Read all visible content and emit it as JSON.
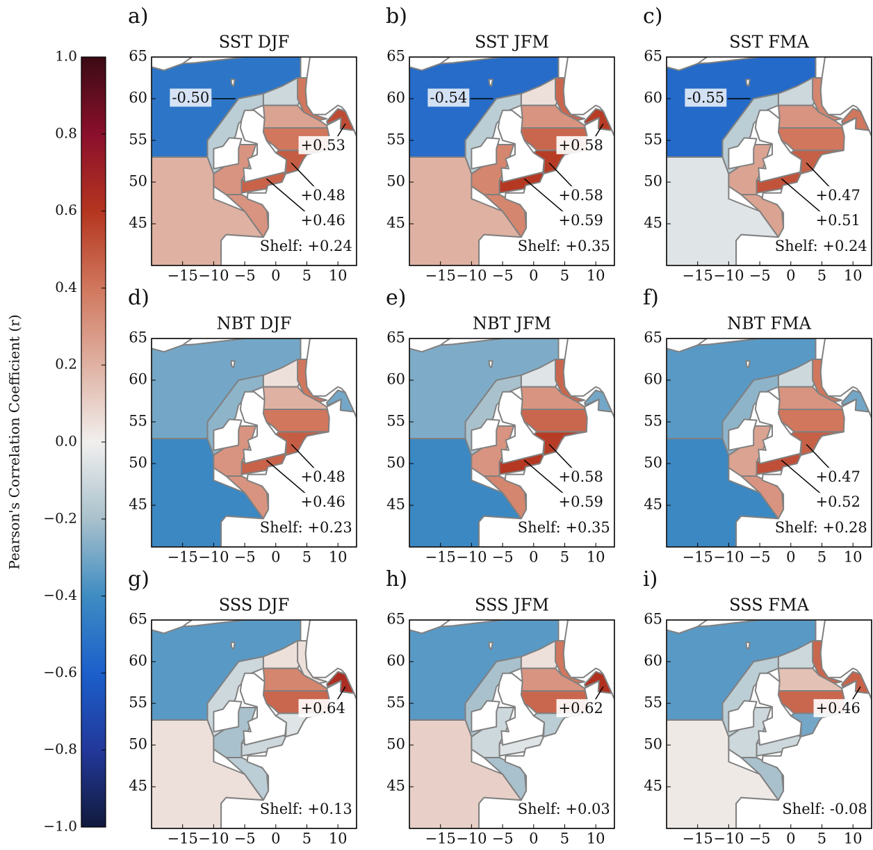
{
  "colorbar": {
    "label": "Pearson's Correlation Coefficient (r)",
    "lim": [
      -1,
      1
    ],
    "ticks": [
      {
        "value": 1,
        "label": "1.0"
      },
      {
        "value": 0.8,
        "label": "0.8"
      },
      {
        "value": 0.6,
        "label": "0.6"
      },
      {
        "value": 0.4,
        "label": "0.4"
      },
      {
        "value": 0.2,
        "label": "0.2"
      },
      {
        "value": 0,
        "label": "0.0"
      },
      {
        "value": -0.2,
        "label": "−0.2"
      },
      {
        "value": -0.4,
        "label": "−0.4"
      },
      {
        "value": -0.6,
        "label": "−0.6"
      },
      {
        "value": -0.8,
        "label": "−0.8"
      },
      {
        "value": -1,
        "label": "−1.0"
      }
    ]
  },
  "panels": [
    {
      "letter": "a)",
      "title": "SST DJF",
      "shelf": "Shelf: +0.24",
      "values": [
        -0.5,
        0.2,
        -0.15,
        -0.1,
        0.25,
        0.4,
        0.48,
        0.46,
        0.53,
        0.4,
        0.3,
        0.3
      ],
      "value_labels": [
        "-0.50",
        null,
        null,
        null,
        null,
        null,
        "+0.48",
        "+0.46",
        "+0.53",
        null,
        null,
        null
      ],
      "xlim": [
        -20,
        13
      ],
      "ylim": [
        40,
        65
      ],
      "xticks": [
        {
          "value": -15,
          "label": "−15"
        },
        {
          "value": -10,
          "label": "−10"
        },
        {
          "value": -5,
          "label": "−5"
        },
        0,
        5,
        10
      ],
      "yticks": [
        45,
        50,
        55,
        60,
        65
      ]
    },
    {
      "letter": "b)",
      "title": "SST JFM",
      "shelf": "Shelf: +0.35",
      "values": [
        -0.54,
        0.2,
        -0.15,
        0.05,
        0.3,
        0.45,
        0.58,
        0.59,
        0.58,
        0.45,
        0.35,
        0.35
      ],
      "value_labels": [
        "-0.54",
        null,
        null,
        null,
        null,
        null,
        "+0.58",
        "+0.59",
        "+0.58",
        null,
        null,
        null
      ],
      "xlim": [
        -20,
        13
      ],
      "ylim": [
        40,
        65
      ],
      "xticks": [
        {
          "value": -15,
          "label": "−15"
        },
        {
          "value": -10,
          "label": "−10"
        },
        {
          "value": -5,
          "label": "−5"
        },
        0,
        5,
        10
      ],
      "yticks": [
        45,
        50,
        55,
        60,
        65
      ]
    },
    {
      "letter": "c)",
      "title": "SST FMA",
      "shelf": "Shelf: +0.24",
      "values": [
        -0.55,
        -0.05,
        -0.15,
        -0.1,
        0.3,
        0.4,
        0.47,
        0.51,
        0.4,
        0.35,
        0.25,
        0.25
      ],
      "value_labels": [
        "-0.55",
        null,
        null,
        null,
        null,
        null,
        "+0.47",
        "+0.51",
        null,
        null,
        null,
        null
      ],
      "xlim": [
        -20,
        13
      ],
      "ylim": [
        40,
        65
      ],
      "xticks": [
        {
          "value": -15,
          "label": "−15"
        },
        {
          "value": -10,
          "label": "−10"
        },
        {
          "value": -5,
          "label": "−5"
        },
        0,
        5,
        10
      ],
      "yticks": [
        45,
        50,
        55,
        60,
        65
      ]
    },
    {
      "letter": "d)",
      "title": "NBT DJF",
      "shelf": "Shelf: +0.23",
      "values": [
        -0.3,
        -0.42,
        -0.25,
        0.05,
        0.2,
        0.4,
        0.48,
        0.46,
        -0.3,
        0.4,
        0.3,
        0.3
      ],
      "value_labels": [
        null,
        null,
        null,
        null,
        null,
        null,
        "+0.48",
        "+0.46",
        null,
        null,
        null,
        null
      ],
      "xlim": [
        -20,
        13
      ],
      "ylim": [
        40,
        65
      ],
      "xticks": [
        {
          "value": -15,
          "label": "−15"
        },
        {
          "value": -10,
          "label": "−10"
        },
        {
          "value": -5,
          "label": "−5"
        },
        0,
        5,
        10
      ],
      "yticks": [
        45,
        50,
        55,
        60,
        65
      ]
    },
    {
      "letter": "e)",
      "title": "NBT JFM",
      "shelf": "Shelf: +0.35",
      "values": [
        -0.28,
        -0.42,
        -0.2,
        -0.05,
        0.3,
        0.45,
        0.58,
        0.59,
        -0.3,
        0.45,
        0.3,
        0.35
      ],
      "value_labels": [
        null,
        null,
        null,
        null,
        null,
        null,
        "+0.58",
        "+0.59",
        null,
        null,
        null,
        null
      ],
      "xlim": [
        -20,
        13
      ],
      "ylim": [
        40,
        65
      ],
      "xticks": [
        {
          "value": -15,
          "label": "−15"
        },
        {
          "value": -10,
          "label": "−10"
        },
        {
          "value": -5,
          "label": "−5"
        },
        0,
        5,
        10
      ],
      "yticks": [
        45,
        50,
        55,
        60,
        65
      ]
    },
    {
      "letter": "f)",
      "title": "NBT FMA",
      "shelf": "Shelf: +0.28",
      "values": [
        -0.35,
        -0.42,
        -0.25,
        -0.1,
        0.3,
        0.4,
        0.47,
        0.52,
        -0.3,
        0.4,
        0.25,
        0.3
      ],
      "value_labels": [
        null,
        null,
        null,
        null,
        null,
        null,
        "+0.47",
        "+0.52",
        null,
        null,
        null,
        null
      ],
      "xlim": [
        -20,
        13
      ],
      "ylim": [
        40,
        65
      ],
      "xticks": [
        {
          "value": -15,
          "label": "−15"
        },
        {
          "value": -10,
          "label": "−10"
        },
        {
          "value": -5,
          "label": "−5"
        },
        0,
        5,
        10
      ],
      "yticks": [
        45,
        50,
        55,
        60,
        65
      ]
    },
    {
      "letter": "g)",
      "title": "SSS DJF",
      "shelf": "Shelf: +0.13",
      "values": [
        -0.35,
        0.05,
        -0.1,
        0.05,
        0.35,
        0.45,
        -0.05,
        -0.1,
        0.64,
        0.05,
        -0.2,
        -0.15
      ],
      "value_labels": [
        null,
        null,
        null,
        null,
        null,
        null,
        null,
        null,
        "+0.64",
        null,
        null,
        null
      ],
      "xlim": [
        -20,
        13
      ],
      "ylim": [
        40,
        65
      ],
      "xticks": [
        {
          "value": -15,
          "label": "−15"
        },
        {
          "value": -10,
          "label": "−10"
        },
        {
          "value": -5,
          "label": "−5"
        },
        0,
        5,
        10
      ],
      "yticks": [
        45,
        50,
        55,
        60,
        65
      ]
    },
    {
      "letter": "h)",
      "title": "SSS JFM",
      "shelf": "Shelf: +0.03",
      "values": [
        -0.35,
        0.1,
        -0.2,
        0.05,
        0.3,
        0.45,
        -0.15,
        -0.05,
        0.62,
        0.4,
        -0.1,
        -0.2
      ],
      "value_labels": [
        null,
        null,
        null,
        null,
        null,
        null,
        null,
        null,
        "+0.62",
        null,
        null,
        null
      ],
      "xlim": [
        -20,
        13
      ],
      "ylim": [
        40,
        65
      ],
      "xticks": [
        {
          "value": -15,
          "label": "−15"
        },
        {
          "value": -10,
          "label": "−10"
        },
        {
          "value": -5,
          "label": "−5"
        },
        0,
        5,
        10
      ],
      "yticks": [
        45,
        50,
        55,
        60,
        65
      ]
    },
    {
      "letter": "i)",
      "title": "SSS FMA",
      "shelf": "Shelf: -0.08",
      "values": [
        -0.35,
        0.02,
        -0.15,
        -0.1,
        0.15,
        0.45,
        -0.3,
        -0.1,
        0.46,
        0.45,
        -0.1,
        -0.2
      ],
      "value_labels": [
        null,
        null,
        null,
        null,
        null,
        null,
        null,
        null,
        "+0.46",
        null,
        null,
        null
      ],
      "xlim": [
        -20,
        13
      ],
      "ylim": [
        40,
        65
      ],
      "xticks": [
        {
          "value": -15,
          "label": "−15"
        },
        {
          "value": -10,
          "label": "−10"
        },
        {
          "value": -5,
          "label": "−5"
        },
        0,
        5,
        10
      ],
      "yticks": [
        45,
        50,
        55,
        60,
        65
      ]
    }
  ]
}
